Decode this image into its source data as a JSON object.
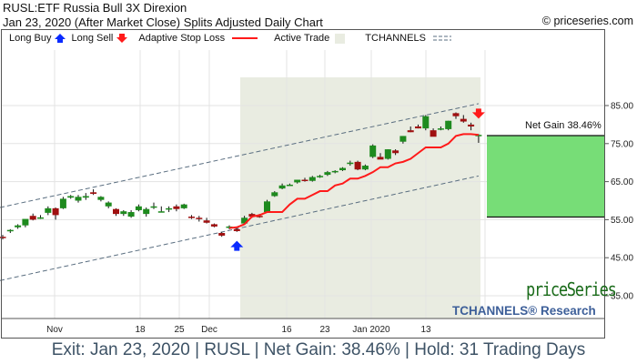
{
  "header": {
    "title": "RUSL:ETF Russia Bull 3X Direxion",
    "subtitle": "Jan 23, 2020 (After Market Close)  Splits Adjusted Daily Chart",
    "copyright": "© priceseries.com"
  },
  "legend": {
    "long_buy": "Long Buy",
    "long_sell": "Long Sell",
    "stop_loss": "Adaptive Stop Loss",
    "active_trade": "Active Trade",
    "tchannels": "TCHANNELS"
  },
  "annotations": {
    "net_gain_label": "Net Gain 38.46%",
    "brand_name": "priceSeries",
    "brand_sub": "TCHANNELS® Research"
  },
  "footer": {
    "text": "Exit: Jan 23, 2020 | RUSL | Net Gain: 38.46% | Hold: 31 Trading Days"
  },
  "colors": {
    "up_candle": "#1e8a1e",
    "down_candle": "#a01010",
    "stop_loss": "#ff1a1a",
    "active_trade_bg": "#e9ece1",
    "gain_box": "#77dd77",
    "buy_arrow": "#0a2bff",
    "sell_arrow": "#ff1a1a",
    "channel": "#5a6e80",
    "footer_text": "#3e5366"
  },
  "chart_data": {
    "type": "candlestick",
    "title": "RUSL:ETF Russia Bull 3X Direxion",
    "subtitle": "Jan 23, 2020 (After Market Close) Splits Adjusted Daily Chart",
    "xlabel": "",
    "ylabel": "",
    "ylim": [
      29,
      94
    ],
    "y_ticks": [
      "85.00",
      "75.00",
      "65.00",
      "55.00",
      "45.00",
      "35.00"
    ],
    "x_ticks": [
      "Nov",
      "18",
      "25",
      "Dec",
      "16",
      "23",
      "Jan 2020",
      "13"
    ],
    "grid": true,
    "legend_position": "top",
    "trade": {
      "entry_date": "Dec 6, 2019",
      "exit_date": "Jan 23, 2020",
      "entry_price": 55.7,
      "exit_price": 77.1,
      "net_gain_pct": 38.46,
      "hold_trading_days": 31
    },
    "candles": [
      {
        "o": 50.5,
        "h": 51.0,
        "l": 49.8,
        "c": 50.2
      },
      {
        "o": 52.0,
        "h": 52.5,
        "l": 51.5,
        "c": 52.3
      },
      {
        "o": 53.0,
        "h": 53.8,
        "l": 52.6,
        "c": 53.5
      },
      {
        "o": 53.5,
        "h": 55.0,
        "l": 53.0,
        "c": 55.2
      },
      {
        "o": 56.0,
        "h": 56.6,
        "l": 54.8,
        "c": 55.0
      },
      {
        "o": 55.6,
        "h": 56.2,
        "l": 55.2,
        "c": 55.6
      },
      {
        "o": 56.8,
        "h": 58.5,
        "l": 56.2,
        "c": 58.0
      },
      {
        "o": 58.0,
        "h": 58.2,
        "l": 55.0,
        "c": 56.2
      },
      {
        "o": 58.0,
        "h": 61.0,
        "l": 57.8,
        "c": 60.5
      },
      {
        "o": 60.8,
        "h": 61.5,
        "l": 60.5,
        "c": 61.2
      },
      {
        "o": 60.0,
        "h": 61.5,
        "l": 59.5,
        "c": 61.0
      },
      {
        "o": 60.8,
        "h": 62.0,
        "l": 60.2,
        "c": 61.2
      },
      {
        "o": 62.2,
        "h": 63.0,
        "l": 61.5,
        "c": 61.8
      },
      {
        "o": 60.2,
        "h": 61.2,
        "l": 59.8,
        "c": 61.0
      },
      {
        "o": 58.5,
        "h": 59.8,
        "l": 58.0,
        "c": 59.5
      },
      {
        "o": 57.8,
        "h": 58.0,
        "l": 56.0,
        "c": 56.5
      },
      {
        "o": 56.5,
        "h": 57.5,
        "l": 56.0,
        "c": 57.2
      },
      {
        "o": 55.8,
        "h": 57.5,
        "l": 55.5,
        "c": 57.0
      },
      {
        "o": 57.5,
        "h": 59.0,
        "l": 57.2,
        "c": 58.5
      },
      {
        "o": 56.5,
        "h": 58.2,
        "l": 55.8,
        "c": 57.8
      },
      {
        "o": 58.2,
        "h": 59.5,
        "l": 57.8,
        "c": 58.5
      },
      {
        "o": 57.0,
        "h": 58.5,
        "l": 57.0,
        "c": 57.2
      },
      {
        "o": 57.8,
        "h": 58.5,
        "l": 57.0,
        "c": 58.0
      },
      {
        "o": 58.5,
        "h": 59.0,
        "l": 57.2,
        "c": 57.8
      },
      {
        "o": 58.0,
        "h": 59.2,
        "l": 57.8,
        "c": 59.0
      },
      {
        "o": 55.8,
        "h": 56.2,
        "l": 55.2,
        "c": 55.5
      },
      {
        "o": 55.5,
        "h": 56.0,
        "l": 54.5,
        "c": 55.2
      },
      {
        "o": 54.8,
        "h": 55.5,
        "l": 54.0,
        "c": 54.2
      },
      {
        "o": 53.8,
        "h": 54.0,
        "l": 53.0,
        "c": 53.2
      },
      {
        "o": 51.5,
        "h": 51.8,
        "l": 50.5,
        "c": 50.8
      },
      {
        "o": 53.0,
        "h": 53.5,
        "l": 52.5,
        "c": 53.2
      },
      {
        "o": 52.5,
        "h": 53.0,
        "l": 51.8,
        "c": 52.0
      },
      {
        "o": 54.0,
        "h": 56.0,
        "l": 53.8,
        "c": 55.5
      },
      {
        "o": 56.5,
        "h": 56.8,
        "l": 55.5,
        "c": 55.8
      },
      {
        "o": 56.0,
        "h": 56.5,
        "l": 55.5,
        "c": 55.8
      },
      {
        "o": 57.0,
        "h": 60.2,
        "l": 56.8,
        "c": 59.8
      },
      {
        "o": 61.2,
        "h": 62.5,
        "l": 61.0,
        "c": 62.2
      },
      {
        "o": 63.2,
        "h": 64.5,
        "l": 63.0,
        "c": 64.0
      },
      {
        "o": 64.2,
        "h": 64.5,
        "l": 64.0,
        "c": 64.2
      },
      {
        "o": 64.8,
        "h": 65.5,
        "l": 64.5,
        "c": 65.5
      },
      {
        "o": 65.5,
        "h": 66.0,
        "l": 65.0,
        "c": 65.2
      },
      {
        "o": 65.2,
        "h": 66.5,
        "l": 65.0,
        "c": 66.2
      },
      {
        "o": 66.3,
        "h": 66.8,
        "l": 66.0,
        "c": 66.5
      },
      {
        "o": 66.8,
        "h": 67.8,
        "l": 66.5,
        "c": 67.5
      },
      {
        "o": 67.5,
        "h": 68.0,
        "l": 67.2,
        "c": 67.8
      },
      {
        "o": 68.0,
        "h": 68.8,
        "l": 67.8,
        "c": 68.6
      },
      {
        "o": 69.8,
        "h": 70.5,
        "l": 69.2,
        "c": 70.0
      },
      {
        "o": 70.2,
        "h": 70.5,
        "l": 68.0,
        "c": 68.2
      },
      {
        "o": 68.2,
        "h": 69.5,
        "l": 68.0,
        "c": 69.2
      },
      {
        "o": 71.5,
        "h": 74.8,
        "l": 71.2,
        "c": 74.5
      },
      {
        "o": 71.5,
        "h": 72.5,
        "l": 71.0,
        "c": 70.8
      },
      {
        "o": 71.0,
        "h": 73.5,
        "l": 70.8,
        "c": 73.5
      },
      {
        "o": 73.2,
        "h": 73.5,
        "l": 72.0,
        "c": 72.5
      },
      {
        "o": 75.5,
        "h": 77.0,
        "l": 75.0,
        "c": 77.0
      },
      {
        "o": 78.5,
        "h": 79.5,
        "l": 78.0,
        "c": 78.0
      },
      {
        "o": 79.5,
        "h": 80.0,
        "l": 79.0,
        "c": 79.0
      },
      {
        "o": 79.0,
        "h": 82.5,
        "l": 78.5,
        "c": 82.2
      },
      {
        "o": 78.5,
        "h": 79.0,
        "l": 77.5,
        "c": 76.8
      },
      {
        "o": 78.8,
        "h": 79.5,
        "l": 78.5,
        "c": 79.0
      },
      {
        "o": 78.8,
        "h": 81.0,
        "l": 78.5,
        "c": 81.0
      },
      {
        "o": 83.0,
        "h": 83.2,
        "l": 81.5,
        "c": 82.2
      },
      {
        "o": 81.5,
        "h": 82.5,
        "l": 80.5,
        "c": 80.8
      },
      {
        "o": 80.0,
        "h": 80.5,
        "l": 78.5,
        "c": 79.5
      },
      {
        "o": 77.2,
        "h": 77.5,
        "l": 75.2,
        "c": 77.3
      }
    ],
    "stop_loss": [
      {
        "i": 30,
        "v": 52.8
      },
      {
        "i": 31,
        "v": 53.0
      },
      {
        "i": 32,
        "v": 53.8
      },
      {
        "i": 33,
        "v": 55.8
      },
      {
        "i": 34,
        "v": 56.2
      },
      {
        "i": 35,
        "v": 57.0
      },
      {
        "i": 36,
        "v": 57.0
      },
      {
        "i": 37,
        "v": 57.0
      },
      {
        "i": 38,
        "v": 59.0
      },
      {
        "i": 39,
        "v": 60.5
      },
      {
        "i": 40,
        "v": 60.5
      },
      {
        "i": 41,
        "v": 61.5
      },
      {
        "i": 42,
        "v": 62.5
      },
      {
        "i": 43,
        "v": 62.5
      },
      {
        "i": 44,
        "v": 64.0
      },
      {
        "i": 45,
        "v": 64.5
      },
      {
        "i": 46,
        "v": 65.8
      },
      {
        "i": 47,
        "v": 65.8
      },
      {
        "i": 48,
        "v": 66.5
      },
      {
        "i": 49,
        "v": 67.5
      },
      {
        "i": 50,
        "v": 68.8
      },
      {
        "i": 51,
        "v": 68.8
      },
      {
        "i": 52,
        "v": 69.8
      },
      {
        "i": 53,
        "v": 70.2
      },
      {
        "i": 54,
        "v": 71.0
      },
      {
        "i": 55,
        "v": 72.5
      },
      {
        "i": 56,
        "v": 74.0
      },
      {
        "i": 57,
        "v": 74.0
      },
      {
        "i": 58,
        "v": 74.0
      },
      {
        "i": 59,
        "v": 75.0
      },
      {
        "i": 60,
        "v": 77.0
      },
      {
        "i": 61,
        "v": 77.5
      },
      {
        "i": 62,
        "v": 77.5
      },
      {
        "i": 63,
        "v": 77.3
      }
    ],
    "channels": {
      "upper": [
        [
          0,
          58.2
        ],
        [
          63,
          85.5
        ]
      ],
      "lower": [
        [
          0,
          39.0
        ],
        [
          63,
          66.5
        ]
      ]
    },
    "markers": [
      {
        "type": "long_buy",
        "index": 31,
        "price": 48.0
      },
      {
        "type": "long_sell",
        "index": 63,
        "price": 83.0
      }
    ]
  }
}
